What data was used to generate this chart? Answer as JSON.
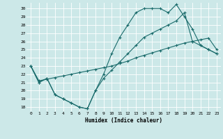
{
  "xlabel": "Humidex (Indice chaleur)",
  "bg_color": "#cce8e8",
  "line_color": "#1a6b6b",
  "grid_color": "#ffffff",
  "xlim": [
    -0.5,
    23.5
  ],
  "ylim": [
    17.5,
    30.7
  ],
  "xticks": [
    0,
    1,
    2,
    3,
    4,
    5,
    6,
    7,
    8,
    9,
    10,
    11,
    12,
    13,
    14,
    15,
    16,
    17,
    18,
    19,
    20,
    21,
    22,
    23
  ],
  "yticks": [
    18,
    19,
    20,
    21,
    22,
    23,
    24,
    25,
    26,
    27,
    28,
    29,
    30
  ],
  "line1_x": [
    0,
    1,
    2,
    3,
    4,
    5,
    6,
    7,
    8,
    9,
    10,
    11,
    12,
    13,
    14,
    15,
    16,
    17,
    18,
    19,
    20,
    21,
    22,
    23
  ],
  "line1_y": [
    23,
    21,
    21.5,
    19.5,
    19,
    18.5,
    18,
    17.8,
    20,
    22,
    24.5,
    26.5,
    28,
    29.5,
    30,
    30,
    30,
    29.5,
    30.5,
    29,
    27.5,
    25.5,
    25,
    24.5
  ],
  "line2_x": [
    0,
    1,
    2,
    3,
    4,
    5,
    6,
    7,
    8,
    9,
    10,
    11,
    12,
    13,
    14,
    15,
    16,
    17,
    18,
    19,
    20,
    21,
    22,
    23
  ],
  "line2_y": [
    23,
    21.2,
    21.4,
    21.6,
    21.8,
    22.0,
    22.2,
    22.4,
    22.6,
    22.8,
    23.0,
    23.3,
    23.6,
    24.0,
    24.3,
    24.6,
    24.9,
    25.2,
    25.5,
    25.8,
    26.0,
    26.2,
    26.4,
    25.0
  ],
  "line3_x": [
    0,
    1,
    2,
    3,
    4,
    5,
    6,
    7,
    8,
    9,
    10,
    11,
    12,
    13,
    14,
    15,
    16,
    17,
    18,
    19,
    20,
    21,
    22,
    23
  ],
  "line3_y": [
    23,
    21,
    21.5,
    19.5,
    19,
    18.5,
    18,
    17.8,
    20,
    21.5,
    22.5,
    23.5,
    24.5,
    25.5,
    26.5,
    27.0,
    27.5,
    28.0,
    28.5,
    29.5,
    26.0,
    25.5,
    25.0,
    24.5
  ]
}
